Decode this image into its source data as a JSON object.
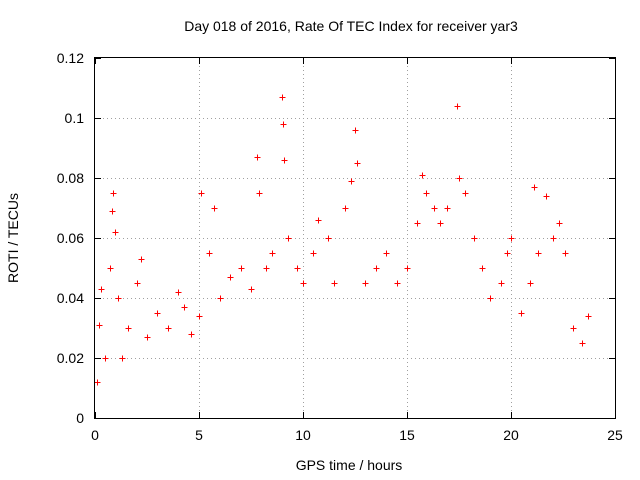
{
  "chart_data": {
    "type": "scatter",
    "title": "Day 018 of 2016, Rate Of TEC Index for receiver yar3",
    "xlabel": "GPS time / hours",
    "ylabel": "ROTI / TECUs",
    "xlim": [
      0,
      25
    ],
    "ylim": [
      0,
      0.12
    ],
    "x_ticks": [
      0,
      5,
      10,
      15,
      20,
      25
    ],
    "x_tick_labels": [
      "0",
      "5",
      "10",
      "15",
      "20",
      "25"
    ],
    "y_ticks": [
      0,
      0.02,
      0.04,
      0.06,
      0.08,
      0.1,
      0.12
    ],
    "y_tick_labels": [
      "0",
      "0.02",
      "0.04",
      "0.06",
      "0.08",
      "0.1",
      "0.12"
    ],
    "grid": true,
    "marker": "plus",
    "color": "#ff0000",
    "series": [
      {
        "points": [
          [
            0.1,
            0.012
          ],
          [
            0.2,
            0.031
          ],
          [
            0.3,
            0.043
          ],
          [
            0.5,
            0.02
          ],
          [
            0.7,
            0.05
          ],
          [
            0.8,
            0.069
          ],
          [
            0.85,
            0.075
          ],
          [
            0.95,
            0.062
          ],
          [
            1.1,
            0.04
          ],
          [
            1.3,
            0.02
          ],
          [
            1.6,
            0.03
          ],
          [
            2.0,
            0.045
          ],
          [
            2.2,
            0.053
          ],
          [
            2.5,
            0.027
          ],
          [
            3.0,
            0.035
          ],
          [
            3.5,
            0.03
          ],
          [
            4.0,
            0.042
          ],
          [
            4.3,
            0.037
          ],
          [
            4.6,
            0.028
          ],
          [
            5.0,
            0.034
          ],
          [
            5.1,
            0.075
          ],
          [
            5.5,
            0.055
          ],
          [
            5.7,
            0.07
          ],
          [
            6.0,
            0.04
          ],
          [
            6.5,
            0.047
          ],
          [
            7.0,
            0.05
          ],
          [
            7.5,
            0.043
          ],
          [
            7.8,
            0.087
          ],
          [
            7.9,
            0.075
          ],
          [
            8.2,
            0.05
          ],
          [
            8.5,
            0.055
          ],
          [
            9.0,
            0.107
          ],
          [
            9.05,
            0.098
          ],
          [
            9.1,
            0.086
          ],
          [
            9.3,
            0.06
          ],
          [
            9.7,
            0.05
          ],
          [
            10.0,
            0.045
          ],
          [
            10.5,
            0.055
          ],
          [
            10.7,
            0.066
          ],
          [
            11.2,
            0.06
          ],
          [
            11.5,
            0.045
          ],
          [
            12.0,
            0.07
          ],
          [
            12.3,
            0.079
          ],
          [
            12.5,
            0.096
          ],
          [
            12.6,
            0.085
          ],
          [
            13.0,
            0.045
          ],
          [
            13.5,
            0.05
          ],
          [
            14.0,
            0.055
          ],
          [
            14.5,
            0.045
          ],
          [
            15.0,
            0.05
          ],
          [
            15.5,
            0.065
          ],
          [
            15.7,
            0.081
          ],
          [
            15.9,
            0.075
          ],
          [
            16.3,
            0.07
          ],
          [
            16.6,
            0.065
          ],
          [
            16.9,
            0.07
          ],
          [
            17.4,
            0.104
          ],
          [
            17.5,
            0.08
          ],
          [
            17.8,
            0.075
          ],
          [
            18.2,
            0.06
          ],
          [
            18.6,
            0.05
          ],
          [
            19.0,
            0.04
          ],
          [
            19.5,
            0.045
          ],
          [
            19.8,
            0.055
          ],
          [
            20.0,
            0.06
          ],
          [
            20.5,
            0.035
          ],
          [
            20.9,
            0.045
          ],
          [
            21.1,
            0.077
          ],
          [
            21.3,
            0.055
          ],
          [
            21.7,
            0.074
          ],
          [
            22.0,
            0.06
          ],
          [
            22.3,
            0.065
          ],
          [
            22.6,
            0.055
          ],
          [
            23.0,
            0.03
          ],
          [
            23.4,
            0.025
          ],
          [
            23.7,
            0.034
          ]
        ]
      }
    ]
  }
}
